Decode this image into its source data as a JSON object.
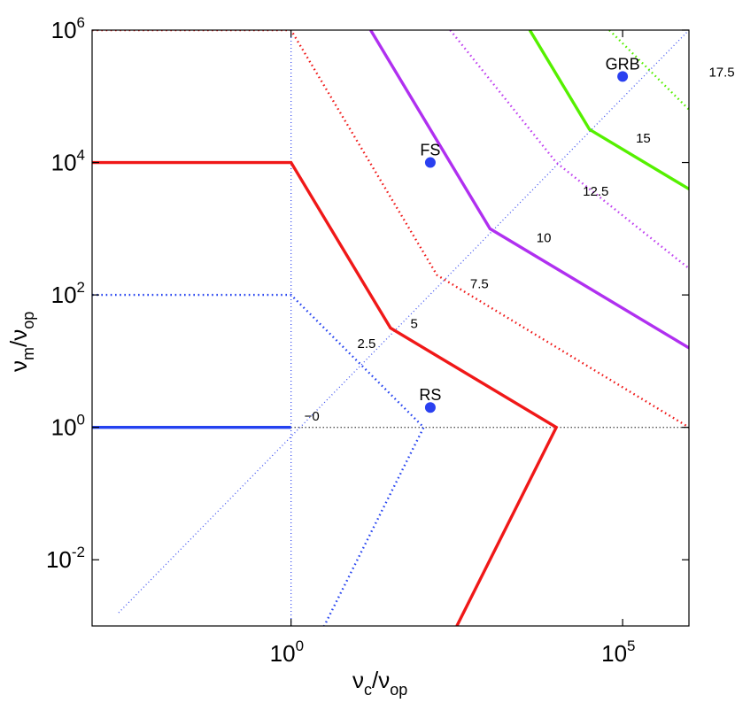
{
  "chart_data": {
    "type": "line",
    "xlabel": {
      "main": "ν",
      "sub1": "c",
      "sep": "/ν",
      "sub2": "op"
    },
    "ylabel": {
      "main": "ν",
      "sub1": "m",
      "sep": "/ν",
      "sub2": "op"
    },
    "xscale": "log",
    "yscale": "log",
    "xlim_log10": [
      -3,
      6
    ],
    "ylim_log10": [
      -3,
      6
    ],
    "x_ticks": [
      {
        "base": "10",
        "exp": "0",
        "log10": 0
      },
      {
        "base": "10",
        "exp": "5",
        "log10": 5
      }
    ],
    "y_ticks": [
      {
        "base": "10",
        "exp": "-2",
        "log10": -2
      },
      {
        "base": "10",
        "exp": "0",
        "log10": 0
      },
      {
        "base": "10",
        "exp": "2",
        "log10": 2
      },
      {
        "base": "10",
        "exp": "4",
        "log10": 4
      },
      {
        "base": "10",
        "exp": "6",
        "log10": 6
      }
    ],
    "grid": false,
    "boundaries": [
      {
        "color": "#000000",
        "style": "dotted",
        "points_log10": [
          [
            0,
            0
          ],
          [
            6,
            0
          ]
        ]
      },
      {
        "color": "#3a4ff0",
        "style": "dotted",
        "points_log10": [
          [
            0,
            -3
          ],
          [
            0,
            6
          ]
        ]
      },
      {
        "color": "#3a4ff0",
        "style": "dotted",
        "points_log10": [
          [
            -2.6,
            -2.8
          ],
          [
            6,
            6
          ]
        ]
      }
    ],
    "contours": [
      {
        "label": "−0",
        "color": "#2442f0",
        "style": "solid",
        "points_log10": [
          [
            -3,
            0
          ],
          [
            0,
            0
          ]
        ]
      },
      {
        "label": "2.5",
        "color": "#2442f0",
        "style": "dotted",
        "points_log10": [
          [
            -3,
            2
          ],
          [
            0,
            2
          ],
          [
            2,
            0
          ],
          [
            0.5,
            -3
          ]
        ]
      },
      {
        "label": "5",
        "color": "#f01818",
        "style": "solid",
        "points_log10": [
          [
            -3,
            4
          ],
          [
            0,
            4
          ],
          [
            1.5,
            1.5
          ],
          [
            4,
            0
          ],
          [
            2.5,
            -3
          ]
        ]
      },
      {
        "label": "7.5",
        "color": "#f01818",
        "style": "dotted",
        "points_log10": [
          [
            -3,
            6
          ],
          [
            0,
            6
          ],
          [
            2.2,
            2.3
          ],
          [
            6,
            0
          ]
        ]
      },
      {
        "label": "10",
        "color": "#b030f0",
        "style": "solid",
        "points_log10": [
          [
            1.2,
            6
          ],
          [
            3,
            3
          ],
          [
            6,
            1.2
          ]
        ]
      },
      {
        "label": "12.5",
        "color": "#c040f0",
        "style": "dotted",
        "points_log10": [
          [
            2.4,
            6
          ],
          [
            4,
            4
          ],
          [
            6,
            2.4
          ]
        ]
      },
      {
        "label": "15",
        "color": "#55f000",
        "style": "solid",
        "points_log10": [
          [
            3.6,
            6
          ],
          [
            4.5,
            4.5
          ],
          [
            6,
            3.6
          ]
        ]
      },
      {
        "label": "17.5",
        "color": "#55f000",
        "style": "dotted",
        "points_log10": [
          [
            4.8,
            6
          ],
          [
            5.4,
            5.4
          ],
          [
            6,
            4.8
          ]
        ]
      }
    ],
    "contour_label_positions_log10": {
      "−0": [
        0.2,
        0.1
      ],
      "2.5": [
        1.0,
        1.2
      ],
      "5": [
        1.8,
        1.5
      ],
      "7.5": [
        2.7,
        2.1
      ],
      "10": [
        3.7,
        2.8
      ],
      "12.5": [
        4.4,
        3.5
      ],
      "15": [
        5.2,
        4.3
      ],
      "17.5": [
        6.3,
        5.3
      ]
    },
    "points": [
      {
        "label": "RS",
        "x_log10": 2.1,
        "y_log10": 0.3,
        "color": "#2a40f0"
      },
      {
        "label": "FS",
        "x_log10": 2.1,
        "y_log10": 4.0,
        "color": "#2a40f0"
      },
      {
        "label": "GRB",
        "x_log10": 5.0,
        "y_log10": 5.3,
        "color": "#2a40f0"
      }
    ]
  }
}
